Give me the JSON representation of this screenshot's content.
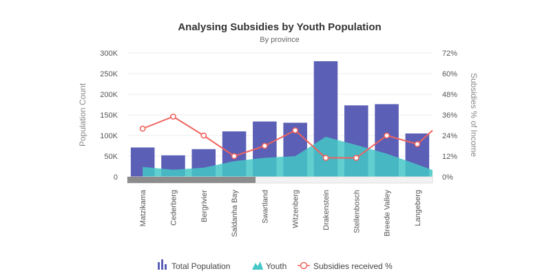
{
  "chart_data": {
    "type": "bar",
    "title": "Analysing Subsidies by Youth Population",
    "subtitle": "By province",
    "categories": [
      "Matzikama",
      "Cederberg",
      "Bergrivier",
      "Saldanha Bay",
      "Swartland",
      "Witzenberg",
      "Drakenstein",
      "Stellenbosch",
      "Breede Valley",
      "Langeberg"
    ],
    "series": [
      {
        "name": "Total Population",
        "kind": "column",
        "axis": "left",
        "color": "#5b5fb5",
        "values": [
          71000,
          52000,
          67000,
          110000,
          134000,
          131000,
          280000,
          173000,
          176000,
          105000
        ]
      },
      {
        "name": "Youth",
        "kind": "area",
        "axis": "left",
        "color": "#45c7c7",
        "values": [
          24000,
          17000,
          22000,
          38000,
          46000,
          50000,
          97000,
          77000,
          56000,
          30000
        ]
      },
      {
        "name": "Subsidies received %",
        "kind": "line",
        "axis": "right",
        "color": "#f0625e",
        "values": [
          28,
          35,
          24,
          12,
          18,
          27,
          11,
          11,
          24,
          19
        ]
      }
    ],
    "y_left": {
      "label": "Population Count",
      "min": 0,
      "max": 300000,
      "ticks": [
        {
          "value": 0,
          "label": "0"
        },
        {
          "value": 50000,
          "label": "50K"
        },
        {
          "value": 100000,
          "label": "100K"
        },
        {
          "value": 150000,
          "label": "150K"
        },
        {
          "value": 200000,
          "label": "200K"
        },
        {
          "value": 250000,
          "label": "250K"
        },
        {
          "value": 300000,
          "label": "300K"
        }
      ]
    },
    "y_right": {
      "label": "Subsidies % of Income",
      "min": 0,
      "max": 72,
      "ticks": [
        {
          "value": 0,
          "label": "0%"
        },
        {
          "value": 12,
          "label": "12%"
        },
        {
          "value": 24,
          "label": "24%"
        },
        {
          "value": 36,
          "label": "36%"
        },
        {
          "value": 48,
          "label": "48%"
        },
        {
          "value": 60,
          "label": "60%"
        },
        {
          "value": 72,
          "label": "72%"
        }
      ]
    },
    "grid": true,
    "legend_position": "bottom-center",
    "scroll_bar": {
      "visible_fraction": 0.42
    }
  }
}
